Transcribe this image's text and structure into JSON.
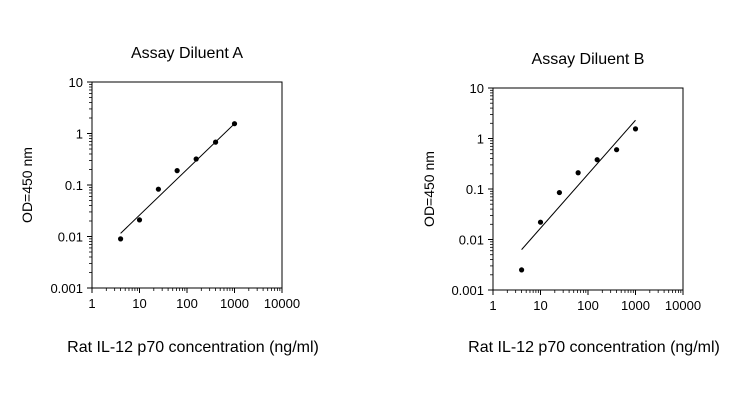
{
  "chart_data": [
    {
      "type": "scatter",
      "title": "Assay Diluent A",
      "xlabel": "Rat IL-12 p70 concentration (ng/ml)",
      "ylabel": "OD=450 nm",
      "xscale": "log",
      "yscale": "log",
      "xlim": [
        1,
        10000
      ],
      "ylim": [
        0.001,
        10
      ],
      "xticks": [
        "1",
        "10",
        "100",
        "1000",
        "10000"
      ],
      "yticks": [
        "0.001",
        "0.01",
        "0.1",
        "1",
        "10"
      ],
      "grid": false,
      "series": [
        {
          "x": [
            4,
            10,
            25,
            62,
            156,
            400,
            1000
          ],
          "y": [
            0.009,
            0.021,
            0.083,
            0.19,
            0.32,
            0.68,
            1.55
          ]
        }
      ],
      "fit_line": {
        "x": [
          4,
          1000
        ],
        "y": [
          0.0115,
          1.55
        ]
      }
    },
    {
      "type": "scatter",
      "title": "Assay Diluent B",
      "xlabel": "Rat IL-12 p70 concentration (ng/ml)",
      "ylabel": "OD=450 nm",
      "xscale": "log",
      "yscale": "log",
      "xlim": [
        1,
        10000
      ],
      "ylim": [
        0.001,
        10
      ],
      "xticks": [
        "1",
        "10",
        "100",
        "1000",
        "10000"
      ],
      "yticks": [
        "0.001",
        "0.01",
        "0.1",
        "1",
        "10"
      ],
      "grid": false,
      "series": [
        {
          "x": [
            4,
            10,
            25,
            62,
            156,
            400,
            1000
          ],
          "y": [
            0.0025,
            0.022,
            0.085,
            0.21,
            0.38,
            0.6,
            1.55
          ]
        }
      ],
      "fit_line": {
        "x": [
          4,
          1000
        ],
        "y": [
          0.0063,
          2.3
        ]
      }
    }
  ]
}
